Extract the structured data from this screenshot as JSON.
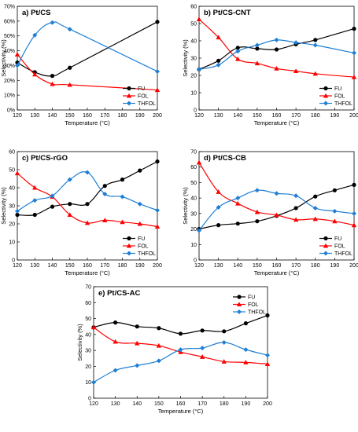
{
  "chart_data": [
    {
      "type": "line",
      "title": "a) Pt/CS",
      "xlabel": "Temperature (°C)",
      "ylabel": "Selectivity (%)",
      "xlim": [
        120,
        200
      ],
      "ylim": [
        0,
        70
      ],
      "xticks": [
        120,
        130,
        140,
        150,
        160,
        170,
        180,
        190,
        200
      ],
      "yticks": [
        0,
        10,
        20,
        30,
        40,
        50,
        60,
        70
      ],
      "ytick_format": "percent",
      "grid": false,
      "legend_position": "bottom-right",
      "series": [
        {
          "name": "FU",
          "color": "#000000",
          "marker": "circle",
          "x": [
            120,
            130,
            140,
            150,
            200
          ],
          "y": [
            32,
            25.5,
            23,
            28.5,
            59.5
          ]
        },
        {
          "name": "FOL",
          "color": "#ff0000",
          "marker": "triangle",
          "x": [
            120,
            130,
            140,
            150,
            200
          ],
          "y": [
            37.5,
            24,
            17.5,
            17,
            13.5
          ]
        },
        {
          "name": "THFOL",
          "color": "#1f7fd4",
          "marker": "diamond",
          "x": [
            120,
            130,
            140,
            150,
            200
          ],
          "y": [
            30,
            50.5,
            59,
            54.5,
            26
          ]
        }
      ]
    },
    {
      "type": "line",
      "title": "b) Pt/CS-CNT",
      "xlabel": "Temperature (°C)",
      "ylabel": "Selectivity (%)",
      "xlim": [
        120,
        200
      ],
      "ylim": [
        0,
        60
      ],
      "xticks": [
        120,
        130,
        140,
        150,
        160,
        170,
        180,
        190,
        200
      ],
      "yticks": [
        0,
        10,
        20,
        30,
        40,
        50,
        60
      ],
      "ytick_format": "plain",
      "grid": false,
      "legend_position": "bottom-right",
      "series": [
        {
          "name": "FU",
          "color": "#000000",
          "marker": "circle",
          "x": [
            120,
            130,
            140,
            150,
            160,
            170,
            180,
            200
          ],
          "y": [
            23.5,
            28.5,
            36,
            35.5,
            35,
            38,
            40.5,
            47
          ]
        },
        {
          "name": "FOL",
          "color": "#ff0000",
          "marker": "triangle",
          "x": [
            120,
            130,
            140,
            150,
            160,
            170,
            180,
            200
          ],
          "y": [
            52.5,
            42,
            29.5,
            27,
            24,
            22.5,
            21,
            19
          ]
        },
        {
          "name": "THFOL",
          "color": "#1f7fd4",
          "marker": "diamond",
          "x": [
            120,
            130,
            140,
            150,
            160,
            170,
            180,
            200
          ],
          "y": [
            23.5,
            26,
            34,
            37.5,
            40.5,
            39,
            37.5,
            33
          ]
        }
      ]
    },
    {
      "type": "line",
      "title": "c) Pt/CS-rGO",
      "xlabel": "Temperature (°C)",
      "ylabel": "Selectivity (%)",
      "xlim": [
        120,
        200
      ],
      "ylim": [
        0,
        60
      ],
      "xticks": [
        120,
        130,
        140,
        150,
        160,
        170,
        180,
        190,
        200
      ],
      "yticks": [
        0,
        10,
        20,
        30,
        40,
        50,
        60
      ],
      "ytick_format": "plain",
      "grid": false,
      "legend_position": "bottom-right",
      "series": [
        {
          "name": "FU",
          "color": "#000000",
          "marker": "circle",
          "x": [
            120,
            130,
            140,
            150,
            160,
            170,
            180,
            190,
            200
          ],
          "y": [
            25,
            25,
            29.5,
            31,
            31,
            41,
            44.5,
            49.5,
            54.5
          ]
        },
        {
          "name": "FOL",
          "color": "#ff0000",
          "marker": "triangle",
          "x": [
            120,
            130,
            140,
            150,
            160,
            170,
            180,
            190,
            200
          ],
          "y": [
            48,
            40,
            35,
            25,
            20.5,
            22,
            21,
            20,
            18.5
          ]
        },
        {
          "name": "THFOL",
          "color": "#1f7fd4",
          "marker": "diamond",
          "x": [
            120,
            130,
            140,
            150,
            160,
            170,
            180,
            190,
            200
          ],
          "y": [
            27,
            33,
            35.5,
            44.5,
            48.5,
            36.5,
            35,
            31,
            27.5
          ]
        }
      ]
    },
    {
      "type": "line",
      "title": "d) Pt/CS-CB",
      "xlabel": "Temperature (°C)",
      "ylabel": "Selectivity (%)",
      "xlim": [
        120,
        200
      ],
      "ylim": [
        0,
        70
      ],
      "xticks": [
        120,
        130,
        140,
        150,
        160,
        170,
        180,
        190,
        200
      ],
      "yticks": [
        0,
        10,
        20,
        30,
        40,
        50,
        60,
        70
      ],
      "ytick_format": "plain",
      "grid": false,
      "legend_position": "bottom-right",
      "series": [
        {
          "name": "FU",
          "color": "#000000",
          "marker": "circle",
          "x": [
            120,
            130,
            140,
            150,
            160,
            170,
            180,
            190,
            200
          ],
          "y": [
            20,
            22.5,
            23.5,
            25,
            28.5,
            33.5,
            41,
            45,
            48.5
          ]
        },
        {
          "name": "FOL",
          "color": "#ff0000",
          "marker": "triangle",
          "x": [
            120,
            130,
            140,
            150,
            160,
            170,
            180,
            190,
            200
          ],
          "y": [
            63,
            44,
            36.5,
            31,
            29,
            26,
            26.5,
            25,
            22.5
          ]
        },
        {
          "name": "THFOL",
          "color": "#1f7fd4",
          "marker": "diamond",
          "x": [
            120,
            130,
            140,
            150,
            160,
            170,
            180,
            190,
            200
          ],
          "y": [
            19,
            34,
            40,
            45,
            43,
            41.5,
            33.5,
            31.5,
            30
          ]
        }
      ]
    },
    {
      "type": "line",
      "title": "e) Pt/CS-AC",
      "xlabel": "Temperature (°C)",
      "ylabel": "Selectivity (%)",
      "xlim": [
        120,
        200
      ],
      "ylim": [
        0,
        70
      ],
      "xticks": [
        120,
        130,
        140,
        150,
        160,
        170,
        180,
        190,
        200
      ],
      "yticks": [
        0,
        10,
        20,
        30,
        40,
        50,
        60,
        70
      ],
      "ytick_format": "plain",
      "grid": false,
      "legend_position": "top-right",
      "series": [
        {
          "name": "FU",
          "color": "#000000",
          "marker": "circle",
          "x": [
            120,
            130,
            140,
            150,
            160,
            170,
            180,
            190,
            200
          ],
          "y": [
            44.5,
            47.5,
            45,
            44,
            40.5,
            42.5,
            42,
            47,
            52
          ]
        },
        {
          "name": "FOL",
          "color": "#ff0000",
          "marker": "triangle",
          "x": [
            120,
            130,
            140,
            150,
            160,
            170,
            180,
            190,
            200
          ],
          "y": [
            44.5,
            35.5,
            34.5,
            33,
            29,
            26,
            23,
            22.5,
            21.5
          ]
        },
        {
          "name": "THFOL",
          "color": "#1f7fd4",
          "marker": "diamond",
          "x": [
            120,
            130,
            140,
            150,
            160,
            170,
            180,
            190,
            200
          ],
          "y": [
            10,
            17.5,
            20.5,
            23.5,
            30.5,
            31.5,
            35,
            30.5,
            27
          ]
        }
      ]
    }
  ]
}
